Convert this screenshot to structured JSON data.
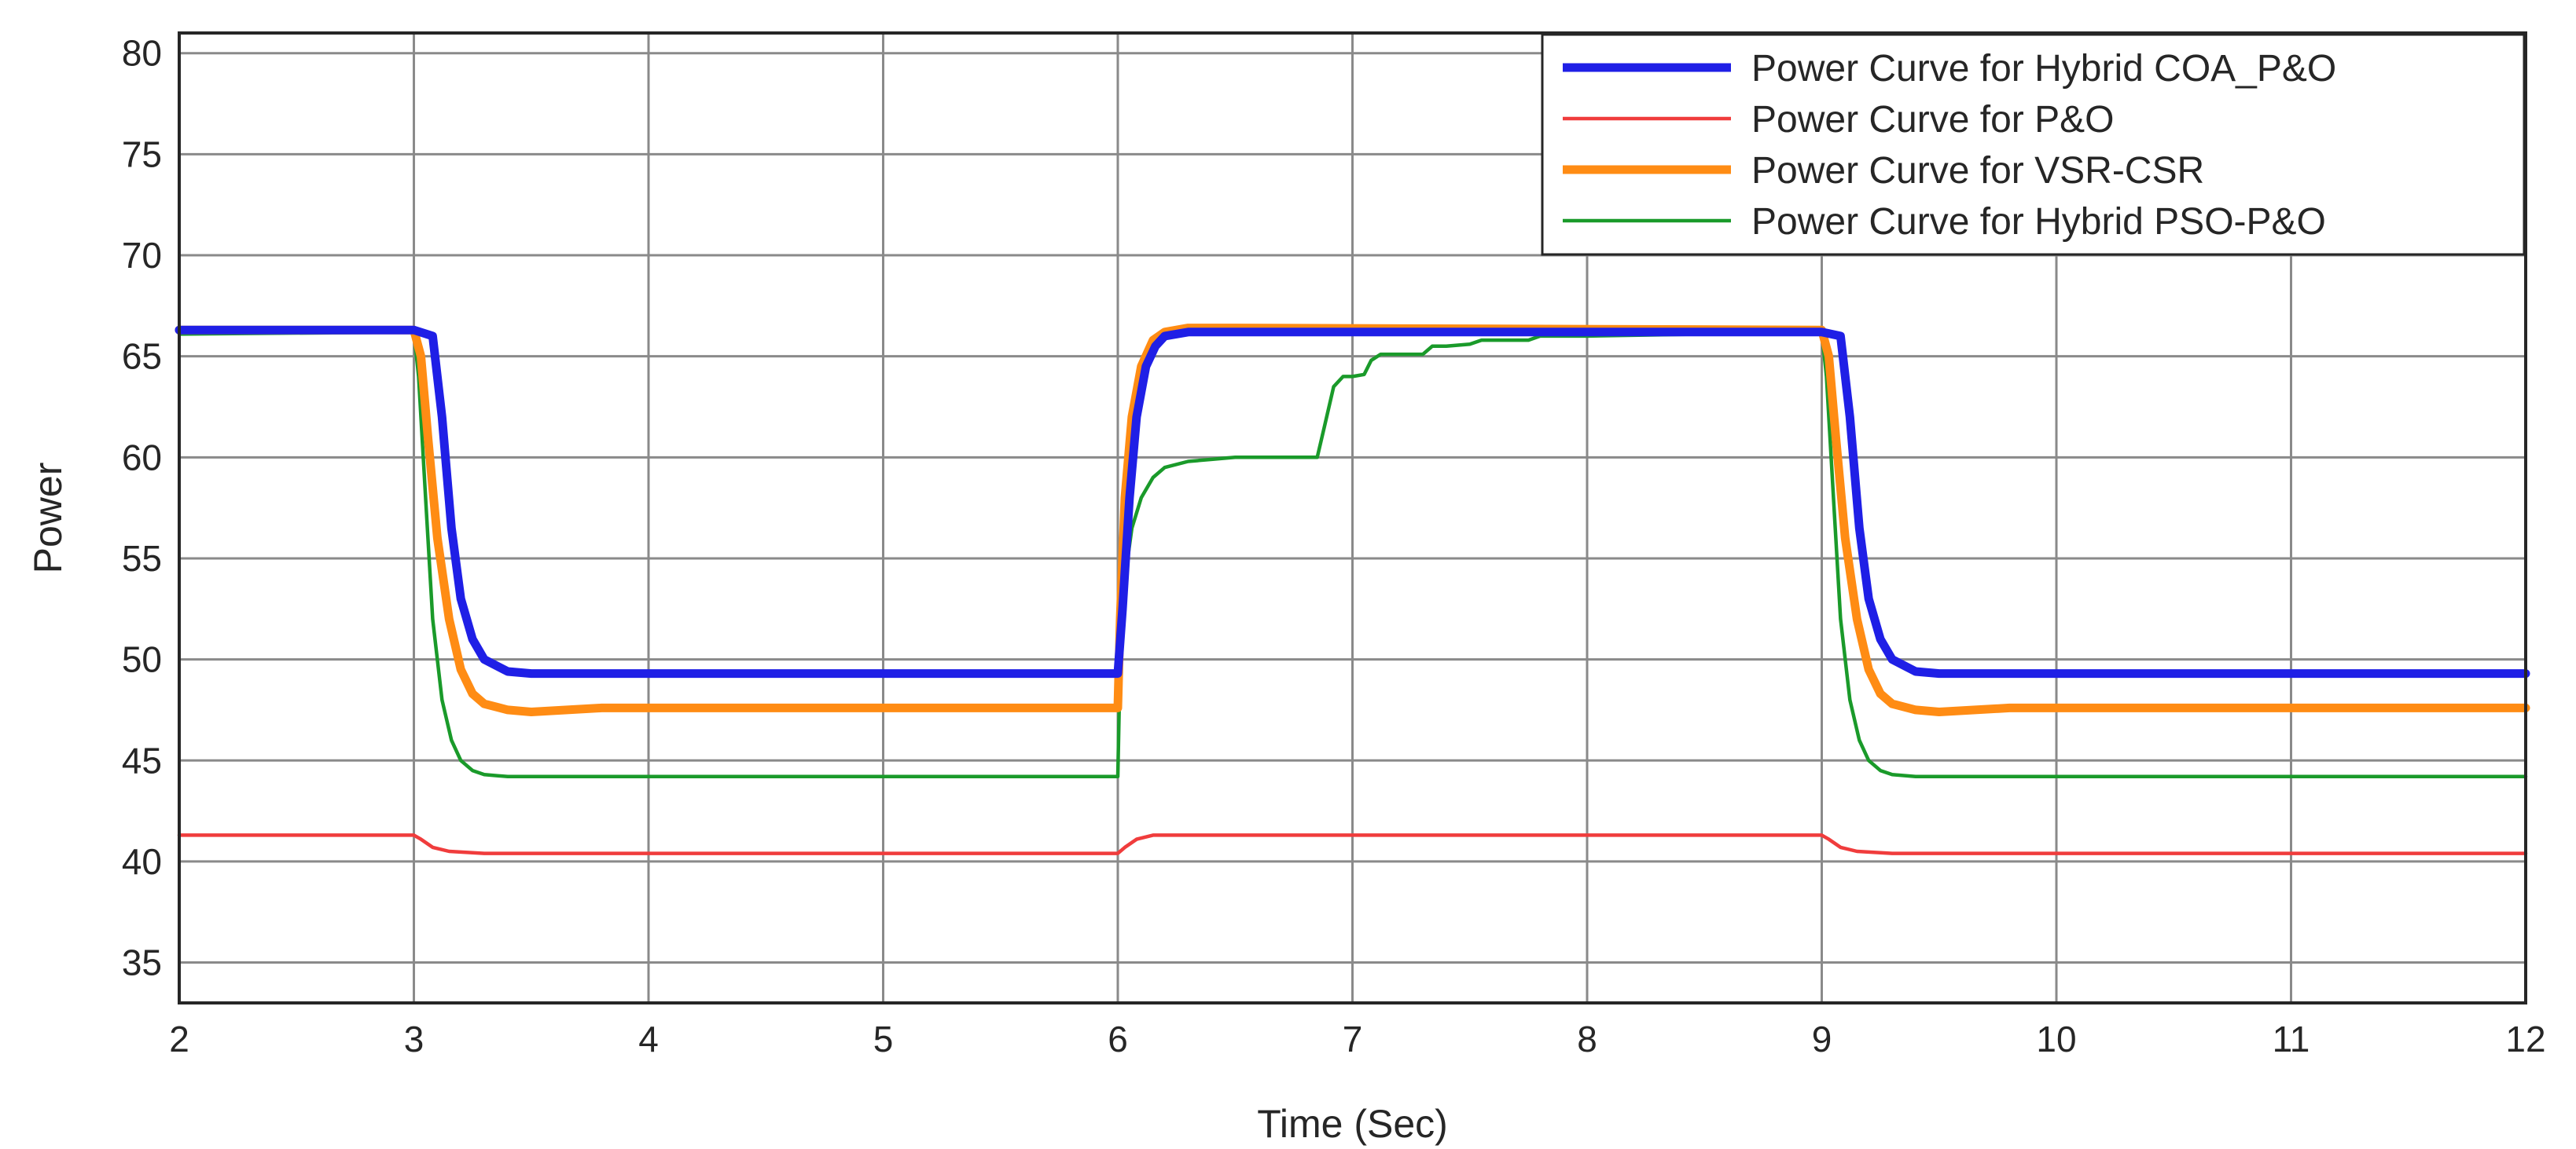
{
  "chart_data": {
    "type": "line",
    "title": "",
    "xlabel": "Time (Sec)",
    "ylabel": "Power",
    "xlim": [
      2,
      12
    ],
    "ylim": [
      33,
      81
    ],
    "xticks": [
      2,
      3,
      4,
      5,
      6,
      7,
      8,
      9,
      10,
      11,
      12
    ],
    "yticks": [
      35,
      40,
      45,
      50,
      55,
      60,
      65,
      70,
      75,
      80
    ],
    "grid": true,
    "legend_position": "top-right",
    "series": [
      {
        "name": "Power Curve for Hybrid COA_P&O",
        "color": "#1f1fe6",
        "width": "thick",
        "x": [
          2,
          3.0,
          3.08,
          3.12,
          3.16,
          3.2,
          3.25,
          3.3,
          3.4,
          3.5,
          6.0,
          6.02,
          6.05,
          6.08,
          6.12,
          6.16,
          6.2,
          6.3,
          6.5,
          9.0,
          9.08,
          9.12,
          9.16,
          9.2,
          9.25,
          9.3,
          9.4,
          9.5,
          12
        ],
        "y": [
          66.3,
          66.3,
          66.0,
          62.0,
          56.5,
          53.0,
          51.0,
          50.0,
          49.4,
          49.3,
          49.3,
          52.5,
          58.0,
          62.0,
          64.5,
          65.5,
          66.0,
          66.2,
          66.2,
          66.2,
          66.0,
          62.0,
          56.5,
          53.0,
          51.0,
          50.0,
          49.4,
          49.3,
          49.3
        ]
      },
      {
        "name": "Power Curve for P&O",
        "color": "#f03c3c",
        "width": "thin",
        "x": [
          2,
          3.0,
          3.03,
          3.08,
          3.15,
          3.3,
          6.0,
          6.03,
          6.08,
          6.15,
          6.3,
          9.0,
          9.03,
          9.08,
          9.15,
          9.3,
          12
        ],
        "y": [
          41.3,
          41.3,
          41.1,
          40.7,
          40.5,
          40.4,
          40.4,
          40.7,
          41.1,
          41.3,
          41.3,
          41.3,
          41.1,
          40.7,
          40.5,
          40.4,
          40.4
        ]
      },
      {
        "name": "Power Curve for VSR-CSR",
        "color": "#ff8c14",
        "width": "thick",
        "x": [
          2,
          3.0,
          3.03,
          3.06,
          3.1,
          3.15,
          3.2,
          3.25,
          3.3,
          3.4,
          3.5,
          3.8,
          6.0,
          6.01,
          6.03,
          6.06,
          6.1,
          6.15,
          6.2,
          6.3,
          6.5,
          9.0,
          9.03,
          9.06,
          9.1,
          9.15,
          9.2,
          9.25,
          9.3,
          9.4,
          9.5,
          9.8,
          12
        ],
        "y": [
          66.3,
          66.3,
          65.0,
          61.0,
          56.0,
          52.0,
          49.5,
          48.3,
          47.8,
          47.5,
          47.4,
          47.6,
          47.6,
          52.0,
          58.0,
          62.0,
          64.5,
          65.8,
          66.2,
          66.4,
          66.4,
          66.3,
          65.0,
          61.0,
          56.0,
          52.0,
          49.5,
          48.3,
          47.8,
          47.5,
          47.4,
          47.6,
          47.6
        ]
      },
      {
        "name": "Power Curve for Hybrid PSO-P&O",
        "color": "#1a9a2a",
        "width": "thin",
        "x": [
          2,
          3.0,
          3.02,
          3.05,
          3.08,
          3.12,
          3.16,
          3.2,
          3.25,
          3.3,
          3.4,
          6.0,
          6.01,
          6.03,
          6.06,
          6.1,
          6.15,
          6.2,
          6.3,
          6.4,
          6.5,
          6.85,
          6.88,
          6.92,
          6.96,
          7.0,
          7.05,
          7.08,
          7.12,
          7.3,
          7.34,
          7.4,
          7.5,
          7.55,
          7.75,
          7.8,
          8.0,
          8.5,
          9.0,
          9.02,
          9.05,
          9.08,
          9.12,
          9.16,
          9.2,
          9.25,
          9.3,
          9.4,
          12
        ],
        "y": [
          66.1,
          66.2,
          64.0,
          58.0,
          52.0,
          48.0,
          46.0,
          45.0,
          44.5,
          44.3,
          44.2,
          44.2,
          50.0,
          54.0,
          56.5,
          58.0,
          59.0,
          59.5,
          59.8,
          59.9,
          60.0,
          60.0,
          61.5,
          63.5,
          64.0,
          64.0,
          64.1,
          64.8,
          65.1,
          65.1,
          65.5,
          65.5,
          65.6,
          65.8,
          65.8,
          66.0,
          66.0,
          66.1,
          66.2,
          64.0,
          58.0,
          52.0,
          48.0,
          46.0,
          45.0,
          44.5,
          44.3,
          44.2,
          44.2
        ]
      }
    ]
  }
}
